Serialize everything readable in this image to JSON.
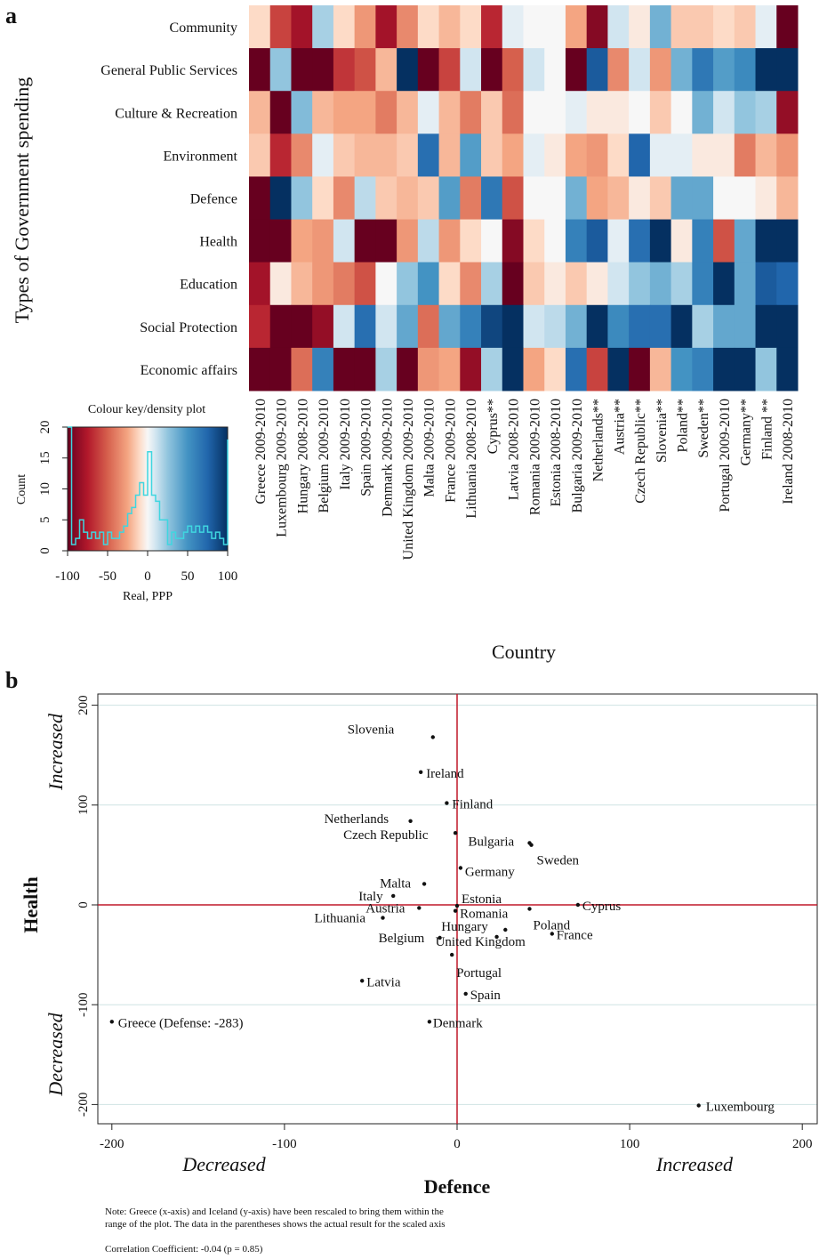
{
  "panel_a": {
    "letter": "a",
    "ylabel": "Types of Government spending",
    "xlabel": "Country",
    "key_title": "Colour key/density plot",
    "key_ylabel": "Count",
    "key_xlabel": "Real, PPP",
    "key_xticks": [
      "-100",
      "-50",
      "0",
      "50",
      "100"
    ],
    "key_yticks": [
      "0",
      "5",
      "10",
      "15",
      "20"
    ]
  },
  "panel_b": {
    "letter": "b",
    "xlabel": "Defence",
    "ylabel": "Health",
    "x_low": "Decreased",
    "x_high": "Increased",
    "y_low": "Decreased",
    "y_high": "Increased",
    "note_line1": "Note: Greece (x-axis) and Iceland (y-axis) have been rescaled to bring them within the",
    "note_line2": "range of the plot.  The data in the parentheses shows the actual result for the scaled axis",
    "correlation": "Correlation Coefficient: -0.04 (p = 0.85)"
  },
  "colors": {
    "line_red": "#c0182a",
    "grid": "#cfe3e3",
    "density_line": "#3fd6e0"
  },
  "chart_data": [
    {
      "type": "heatmap",
      "rows": [
        "Community",
        "General Public Services",
        "Culture & Recreation",
        "Environment",
        "Defence",
        "Health",
        "Education",
        "Social Protection",
        "Economic affairs"
      ],
      "columns": [
        "Greece 2009-2010",
        "Luxembourg 2009-2010",
        "Hungary 2008-2010",
        "Belgium 2009-2010",
        "Italy 2009-2010",
        "Spain 2009-2010",
        "Denmark 2009-2010",
        "United Kingdom 2009-2010",
        "Malta 2009-2010",
        "France 2009-2010",
        "Lithuania 2008-2010",
        "Cyprus**",
        "Latvia 2008-2010",
        "Romania 2009-2010",
        "Estonia 2008-2010",
        "Bulgaria 2009-2010",
        "Netherlands**",
        "Austria**",
        "Czech Republic**",
        "Slovenia**",
        "Poland**",
        "Sweden**",
        "Portugal 2009-2010",
        "Germany**",
        "Finland **",
        "Ireland 2008-2010"
      ],
      "values": [
        [
          -10,
          -60,
          -80,
          20,
          -10,
          -30,
          -80,
          -35,
          -10,
          -20,
          -10,
          -70,
          5,
          0,
          0,
          -25,
          -90,
          10,
          -5,
          35,
          -15,
          -15,
          -10,
          -15,
          5,
          -100
        ],
        [
          -100,
          25,
          -100,
          -100,
          -65,
          -55,
          -20,
          100,
          -100,
          -60,
          10,
          -100,
          -50,
          10,
          0,
          -100,
          80,
          -35,
          10,
          -30,
          35,
          65,
          45,
          55,
          100,
          100
        ],
        [
          -20,
          -100,
          30,
          -20,
          -25,
          -25,
          -40,
          -20,
          5,
          -20,
          -40,
          -15,
          -45,
          0,
          0,
          5,
          -5,
          -5,
          0,
          -15,
          0,
          35,
          10,
          25,
          20,
          -85
        ],
        [
          -15,
          -70,
          -35,
          5,
          -15,
          -20,
          -20,
          -15,
          70,
          -20,
          45,
          -15,
          -25,
          5,
          -5,
          -25,
          -30,
          -10,
          75,
          5,
          5,
          -5,
          -5,
          -40,
          -20,
          -30
        ],
        [
          -100,
          100,
          25,
          -10,
          -35,
          15,
          -15,
          -20,
          -15,
          45,
          -40,
          65,
          -55,
          0,
          0,
          35,
          -25,
          -20,
          -5,
          -15,
          40,
          40,
          0,
          0,
          -5,
          -20
        ],
        [
          -100,
          -100,
          -25,
          -30,
          10,
          -100,
          -100,
          -30,
          15,
          -30,
          -10,
          0,
          -90,
          -10,
          0,
          60,
          80,
          5,
          70,
          100,
          -5,
          60,
          -55,
          40,
          100,
          100
        ],
        [
          -80,
          -5,
          -20,
          -30,
          -40,
          -55,
          0,
          25,
          50,
          -10,
          -35,
          20,
          -100,
          -15,
          -5,
          -15,
          -5,
          10,
          25,
          35,
          20,
          60,
          100,
          40,
          80,
          75
        ],
        [
          -70,
          -100,
          -100,
          -85,
          10,
          70,
          10,
          40,
          -45,
          40,
          60,
          90,
          100,
          10,
          15,
          35,
          100,
          55,
          70,
          70,
          100,
          20,
          40,
          40,
          100,
          100
        ],
        [
          -100,
          -100,
          -45,
          60,
          -100,
          -100,
          20,
          -100,
          -30,
          -25,
          -85,
          20,
          100,
          -25,
          -10,
          70,
          -60,
          100,
          -100,
          -20,
          50,
          60,
          100,
          100,
          25,
          100
        ]
      ],
      "color_range": [
        -100,
        100
      ],
      "density": {
        "x": [
          -100,
          -95,
          -90,
          -85,
          -80,
          -75,
          -70,
          -65,
          -60,
          -55,
          -50,
          -45,
          -40,
          -35,
          -30,
          -25,
          -20,
          -15,
          -10,
          -5,
          0,
          5,
          10,
          15,
          20,
          25,
          30,
          35,
          40,
          45,
          50,
          55,
          60,
          65,
          70,
          75,
          80,
          85,
          90,
          95,
          100
        ],
        "count": [
          20,
          1,
          2,
          5,
          3,
          2,
          3,
          2,
          3,
          1,
          3,
          2,
          2,
          3,
          4,
          6,
          7,
          9,
          11,
          9,
          16,
          9,
          8,
          5,
          5,
          1,
          3,
          2,
          2,
          3,
          4,
          3,
          4,
          3,
          4,
          3,
          2,
          3,
          2,
          1,
          18
        ]
      }
    },
    {
      "type": "scatter",
      "xlabel": "Defence",
      "ylabel": "Health",
      "xlim": [
        -200,
        200
      ],
      "ylim": [
        -200,
        200
      ],
      "xticks": [
        -200,
        -100,
        0,
        100,
        200
      ],
      "yticks": [
        -200,
        -100,
        0,
        100,
        200
      ],
      "grid": true,
      "points": [
        {
          "label": "Slovenia",
          "x": -14,
          "y": 168
        },
        {
          "label": "Ireland",
          "x": -21,
          "y": 133
        },
        {
          "label": "Finland",
          "x": -6,
          "y": 102
        },
        {
          "label": "Netherlands",
          "x": -27,
          "y": 84
        },
        {
          "label": "Czech Republic",
          "x": -1,
          "y": 72
        },
        {
          "label": "Bulgaria",
          "x": 42,
          "y": 62
        },
        {
          "label": "Sweden",
          "x": 43,
          "y": 60
        },
        {
          "label": "Germany",
          "x": 2,
          "y": 37
        },
        {
          "label": "Malta",
          "x": -19,
          "y": 21
        },
        {
          "label": "Italy",
          "x": -37,
          "y": 9
        },
        {
          "label": "Estonia",
          "x": 0,
          "y": -1
        },
        {
          "label": "Cyprus",
          "x": 70,
          "y": 0
        },
        {
          "label": "Austria",
          "x": -22,
          "y": -3
        },
        {
          "label": "Romania",
          "x": -1,
          "y": -6
        },
        {
          "label": "Poland",
          "x": 42,
          "y": -4
        },
        {
          "label": "Lithuania",
          "x": -43,
          "y": -13
        },
        {
          "label": "Hungary",
          "x": 28,
          "y": -25
        },
        {
          "label": "France",
          "x": 55,
          "y": -29
        },
        {
          "label": "Belgium",
          "x": -10,
          "y": -33
        },
        {
          "label": "United Kingdom",
          "x": 23,
          "y": -32
        },
        {
          "label": "Portugal",
          "x": -3,
          "y": -50
        },
        {
          "label": "Latvia",
          "x": -55,
          "y": -76
        },
        {
          "label": "Spain",
          "x": 5,
          "y": -89
        },
        {
          "label": "Greece (Defense: -283)",
          "x": -200,
          "y": -117
        },
        {
          "label": "Denmark",
          "x": -16,
          "y": -117
        },
        {
          "label": "Luxembourg",
          "x": 140,
          "y": -201
        }
      ]
    }
  ]
}
